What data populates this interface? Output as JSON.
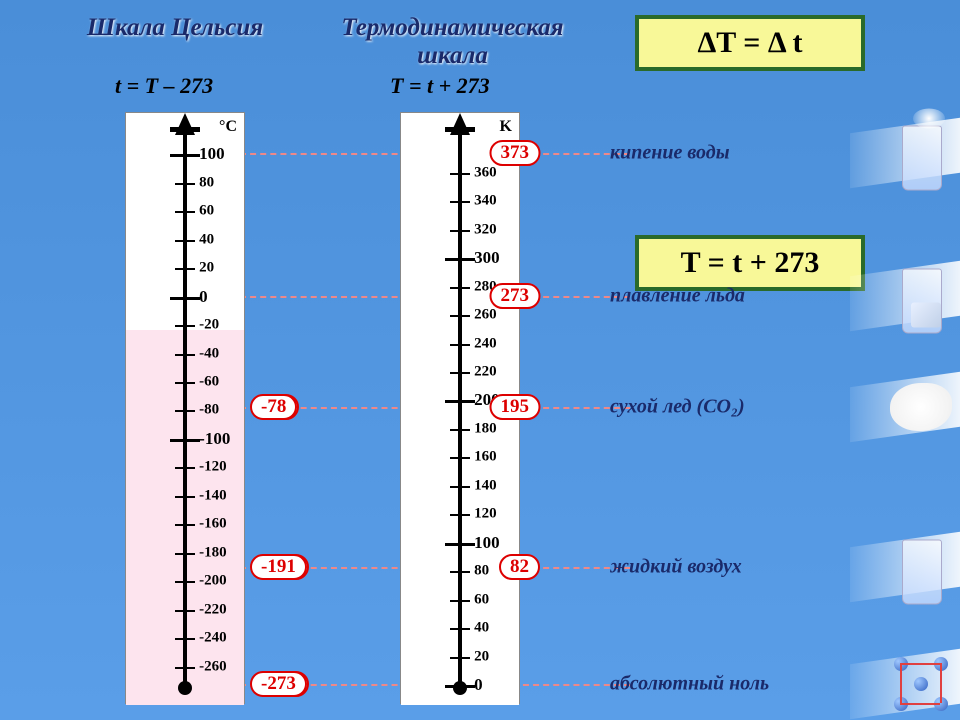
{
  "headers": {
    "celsius": "Шкала Цельсия",
    "kelvin": "Термодинамическая шкала"
  },
  "subformulas": {
    "celsius": "t = T – 273",
    "kelvin": "T = t + 273"
  },
  "boxes": {
    "delta": "ΔT  =  Δ t",
    "conv": "T  =  t + 273"
  },
  "units": {
    "celsius": "°C",
    "kelvin": "K"
  },
  "celsius": {
    "ticks": [
      {
        "v": 100,
        "lbl": "100",
        "maj": true,
        "bold": true
      },
      {
        "v": 80,
        "lbl": "80"
      },
      {
        "v": 60,
        "lbl": "60"
      },
      {
        "v": 40,
        "lbl": "40"
      },
      {
        "v": 20,
        "lbl": "20"
      },
      {
        "v": 0,
        "lbl": "0",
        "maj": true,
        "bold": true
      },
      {
        "v": -20,
        "lbl": "-20"
      },
      {
        "v": -40,
        "lbl": "-40"
      },
      {
        "v": -60,
        "lbl": "-60"
      },
      {
        "v": -80,
        "lbl": "-80"
      },
      {
        "v": -100,
        "lbl": "-100",
        "maj": true,
        "bold": true
      },
      {
        "v": -120,
        "lbl": "-120"
      },
      {
        "v": -140,
        "lbl": "-140"
      },
      {
        "v": -160,
        "lbl": "-160"
      },
      {
        "v": -180,
        "lbl": "-180"
      },
      {
        "v": -200,
        "lbl": "-200"
      },
      {
        "v": -220,
        "lbl": "-220"
      },
      {
        "v": -240,
        "lbl": "-240"
      },
      {
        "v": -260,
        "lbl": "-260"
      }
    ],
    "range": {
      "min": -273,
      "max": 115
    }
  },
  "kelvin": {
    "ticks": [
      {
        "v": 360,
        "lbl": "360"
      },
      {
        "v": 340,
        "lbl": "340"
      },
      {
        "v": 320,
        "lbl": "320"
      },
      {
        "v": 300,
        "lbl": "300",
        "maj": true,
        "bold": true
      },
      {
        "v": 280,
        "lbl": "280"
      },
      {
        "v": 260,
        "lbl": "260"
      },
      {
        "v": 240,
        "lbl": "240"
      },
      {
        "v": 220,
        "lbl": "220"
      },
      {
        "v": 200,
        "lbl": "200",
        "maj": true,
        "bold": true
      },
      {
        "v": 180,
        "lbl": "180"
      },
      {
        "v": 160,
        "lbl": "160"
      },
      {
        "v": 140,
        "lbl": "140"
      },
      {
        "v": 120,
        "lbl": "120"
      },
      {
        "v": 100,
        "lbl": "100",
        "maj": true,
        "bold": true
      },
      {
        "v": 80,
        "lbl": "80"
      },
      {
        "v": 60,
        "lbl": "60"
      },
      {
        "v": 40,
        "lbl": "40"
      },
      {
        "v": 20,
        "lbl": "20"
      },
      {
        "v": 0,
        "lbl": "0",
        "maj": true,
        "bold": true
      }
    ],
    "range": {
      "min": 0,
      "max": 388
    }
  },
  "refs": [
    {
      "c": 100,
      "k": 373,
      "cbub": "373",
      "label": "кипение воды",
      "img": "boil"
    },
    {
      "c": 0,
      "k": 273,
      "cbub": "273",
      "label": "плавление льда",
      "img": "ice"
    },
    {
      "c": -78,
      "k": 195,
      "cbub": "-78",
      "kbub": "195",
      "label": "сухой лед (CO₂)",
      "img": "co2"
    },
    {
      "c": -191,
      "k": 82,
      "cbub": "-191",
      "kbub": "82",
      "label": "жидкий воздух",
      "img": "liq"
    },
    {
      "c": -273,
      "k": 0,
      "cbub": "-273",
      "label": "абсолютный ноль",
      "img": "mol"
    }
  ]
}
